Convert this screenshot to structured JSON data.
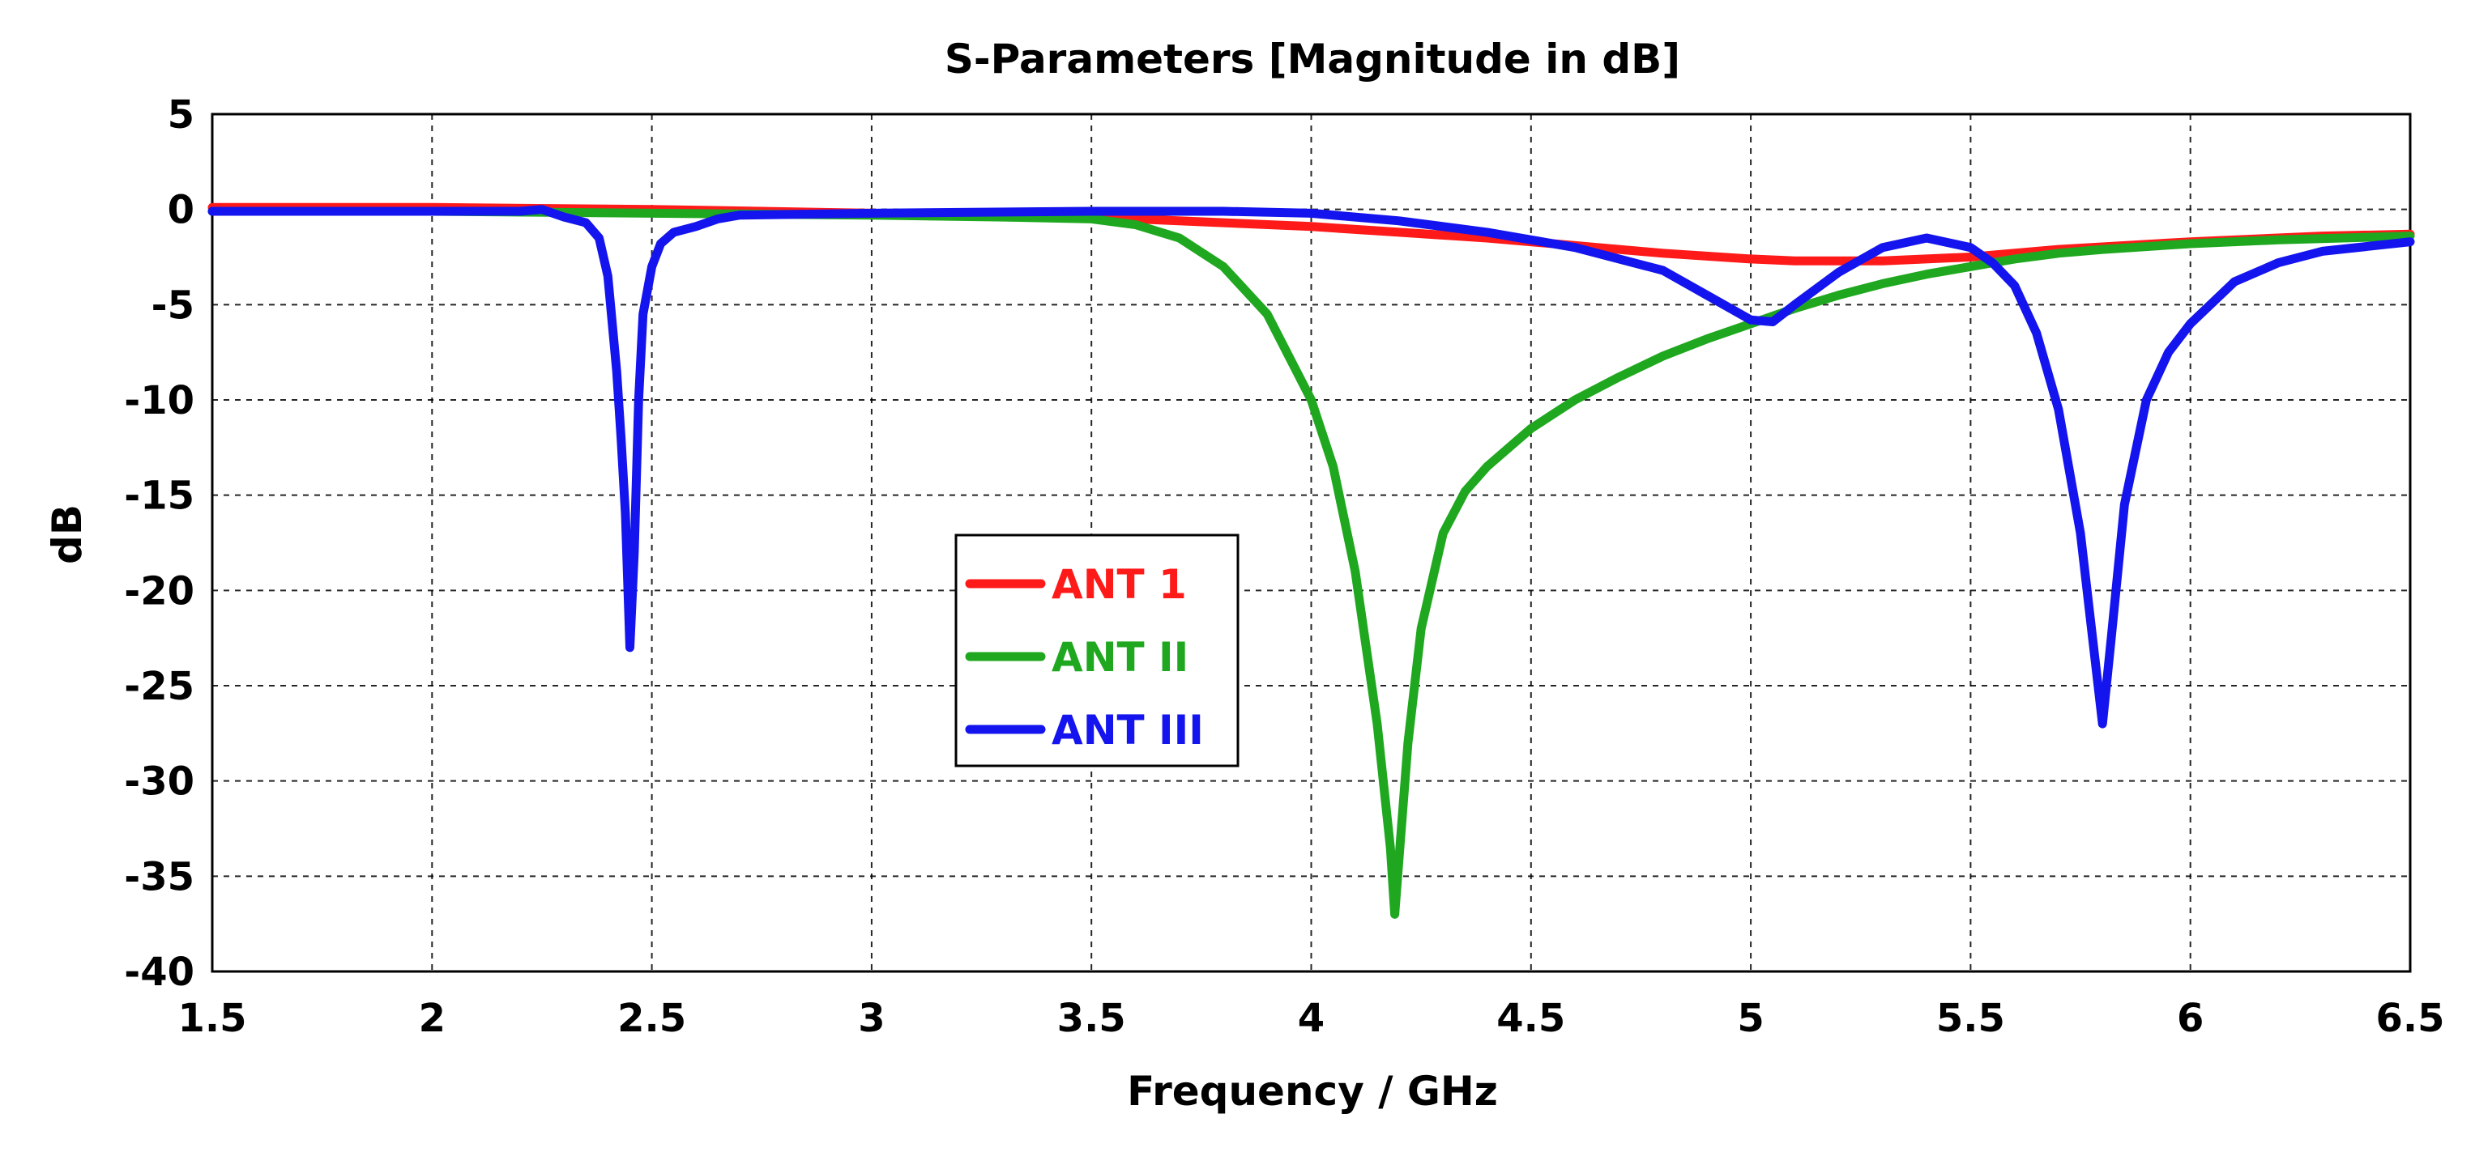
{
  "chart_data": {
    "type": "line",
    "title": "S-Parameters [Magnitude in dB]",
    "xlabel": "Frequency / GHz",
    "ylabel": "dB",
    "xlim": [
      1.5,
      6.5
    ],
    "ylim": [
      -40,
      5
    ],
    "xticks": [
      1.5,
      2,
      2.5,
      3,
      3.5,
      4,
      4.5,
      5,
      5.5,
      6,
      6.5
    ],
    "xtick_labels": [
      "1.5",
      "2",
      "2.5",
      "3",
      "3.5",
      "4",
      "4.5",
      "5",
      "5.5",
      "6",
      "6.5"
    ],
    "yticks": [
      5,
      0,
      -5,
      -10,
      -15,
      -20,
      -25,
      -30,
      -35,
      -40
    ],
    "ytick_labels": [
      "5",
      "0",
      "-5",
      "-10",
      "-15",
      "-20",
      "-25",
      "-30",
      "-35",
      "-40"
    ],
    "grid": true,
    "legend_position": "center-left",
    "series": [
      {
        "name": "ANT 1",
        "color": "#ff1a1a",
        "x": [
          1.5,
          2.0,
          2.5,
          3.0,
          3.5,
          3.8,
          4.0,
          4.2,
          4.4,
          4.6,
          4.8,
          5.0,
          5.1,
          5.2,
          5.3,
          5.5,
          5.7,
          6.0,
          6.3,
          6.5
        ],
        "y": [
          0.1,
          0.1,
          0.0,
          -0.2,
          -0.4,
          -0.7,
          -0.9,
          -1.2,
          -1.5,
          -1.9,
          -2.3,
          -2.6,
          -2.7,
          -2.7,
          -2.7,
          -2.5,
          -2.1,
          -1.7,
          -1.4,
          -1.3
        ]
      },
      {
        "name": "ANT II",
        "color": "#1fa81f",
        "x": [
          1.5,
          2.0,
          2.5,
          3.0,
          3.3,
          3.5,
          3.6,
          3.7,
          3.8,
          3.9,
          4.0,
          4.05,
          4.1,
          4.15,
          4.18,
          4.19,
          4.2,
          4.22,
          4.25,
          4.3,
          4.35,
          4.4,
          4.5,
          4.6,
          4.7,
          4.8,
          4.9,
          5.0,
          5.1,
          5.2,
          5.3,
          5.4,
          5.5,
          5.6,
          5.7,
          5.8,
          6.0,
          6.2,
          6.5
        ],
        "y": [
          -0.1,
          -0.1,
          -0.2,
          -0.3,
          -0.4,
          -0.5,
          -0.8,
          -1.5,
          -3.0,
          -5.5,
          -10.0,
          -13.5,
          -19.0,
          -27.0,
          -33.5,
          -37.0,
          -34.0,
          -28.0,
          -22.0,
          -17.0,
          -14.8,
          -13.5,
          -11.5,
          -10.0,
          -8.8,
          -7.7,
          -6.8,
          -6.0,
          -5.2,
          -4.5,
          -3.9,
          -3.4,
          -3.0,
          -2.6,
          -2.3,
          -2.1,
          -1.8,
          -1.6,
          -1.4
        ]
      },
      {
        "name": "ANT III",
        "color": "#1414ee",
        "x": [
          1.5,
          2.0,
          2.2,
          2.25,
          2.3,
          2.35,
          2.38,
          2.4,
          2.42,
          2.43,
          2.44,
          2.45,
          2.46,
          2.47,
          2.48,
          2.5,
          2.52,
          2.55,
          2.6,
          2.65,
          2.7,
          3.0,
          3.5,
          3.8,
          4.0,
          4.2,
          4.4,
          4.6,
          4.8,
          4.9,
          5.0,
          5.05,
          5.1,
          5.2,
          5.3,
          5.4,
          5.5,
          5.55,
          5.6,
          5.65,
          5.7,
          5.75,
          5.78,
          5.8,
          5.82,
          5.85,
          5.9,
          5.95,
          6.0,
          6.1,
          6.2,
          6.3,
          6.5
        ],
        "y": [
          -0.1,
          -0.1,
          -0.1,
          0.0,
          -0.4,
          -0.7,
          -1.5,
          -3.5,
          -8.5,
          -12.0,
          -16.0,
          -23.0,
          -18.0,
          -10.0,
          -5.5,
          -3.0,
          -1.8,
          -1.2,
          -0.9,
          -0.5,
          -0.3,
          -0.2,
          -0.1,
          -0.1,
          -0.2,
          -0.6,
          -1.2,
          -2.0,
          -3.2,
          -4.5,
          -5.8,
          -5.9,
          -5.0,
          -3.3,
          -2.0,
          -1.5,
          -2.0,
          -2.8,
          -4.0,
          -6.5,
          -10.5,
          -17.0,
          -23.0,
          -27.0,
          -22.5,
          -15.5,
          -10.0,
          -7.5,
          -6.0,
          -3.8,
          -2.8,
          -2.2,
          -1.7
        ]
      }
    ]
  }
}
